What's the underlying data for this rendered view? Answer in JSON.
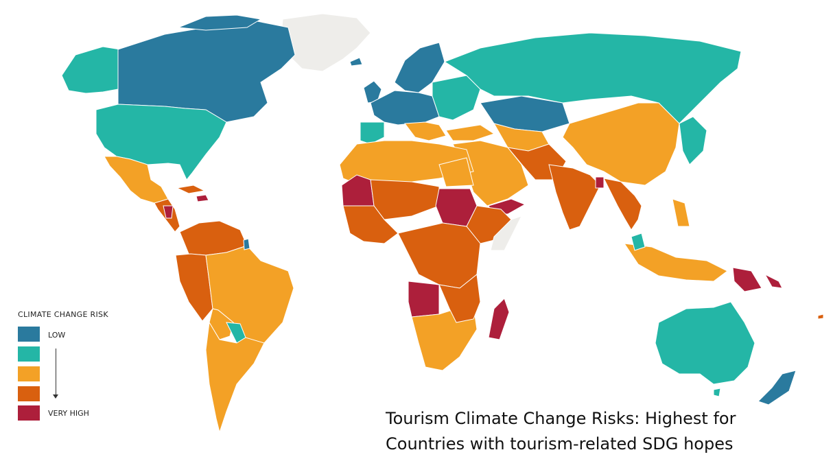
{
  "legend": {
    "title": "CLIMATE CHANGE RISK",
    "low_label": "LOW",
    "high_label": "VERY HIGH",
    "levels": [
      {
        "level": 1,
        "color": "#2a7a9e"
      },
      {
        "level": 2,
        "color": "#24b6a6"
      },
      {
        "level": 3,
        "color": "#f3a126"
      },
      {
        "level": 4,
        "color": "#d9600f"
      },
      {
        "level": 5,
        "color": "#ad1f3b"
      }
    ],
    "no_data_color": "#eeedea"
  },
  "caption": {
    "line1": "Tourism Climate Change Risks: Highest for",
    "line2": "Countries with tourism-related SDG hopes"
  }
}
